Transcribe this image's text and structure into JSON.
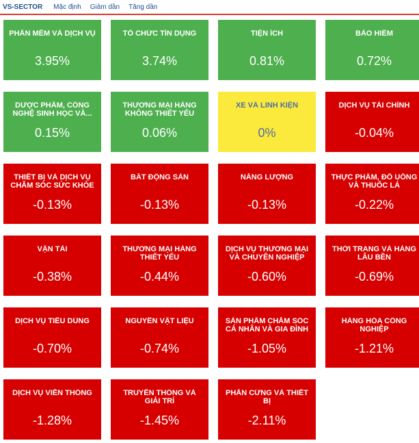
{
  "header": {
    "brand": "VS-SECTOR",
    "options": [
      "Mặc định",
      "Giảm dần",
      "Tăng dần"
    ]
  },
  "colors": {
    "up": "#4eaf4f",
    "down": "#d60000",
    "flat": "#fbe93c",
    "accent": "#d9352b"
  },
  "sectors": [
    {
      "name": "Phần mềm và dịch vụ",
      "change": "3.95%",
      "trend": "up"
    },
    {
      "name": "Tổ chức tín dụng",
      "change": "3.74%",
      "trend": "up"
    },
    {
      "name": "Tiện ích",
      "change": "0.81%",
      "trend": "up"
    },
    {
      "name": "Bảo hiểm",
      "change": "0.72%",
      "trend": "up"
    },
    {
      "name": "Dược phẩm, công nghệ sinh học và...",
      "change": "0.15%",
      "trend": "up"
    },
    {
      "name": "Thương mại hàng không thiết yếu",
      "change": "0.06%",
      "trend": "up"
    },
    {
      "name": "Xe và linh kiện",
      "change": "0%",
      "trend": "flat"
    },
    {
      "name": "Dịch vụ tài chính",
      "change": "-0.04%",
      "trend": "down"
    },
    {
      "name": "Thiết bị và dịch vụ chăm sóc sức khỏe",
      "change": "-0.13%",
      "trend": "down"
    },
    {
      "name": "Bất động sản",
      "change": "-0.13%",
      "trend": "down"
    },
    {
      "name": "Năng lượng",
      "change": "-0.13%",
      "trend": "down"
    },
    {
      "name": "Thực phẩm, đồ uống và thuốc lá",
      "change": "-0.22%",
      "trend": "down"
    },
    {
      "name": "Vận tải",
      "change": "-0.38%",
      "trend": "down"
    },
    {
      "name": "Thương mại hàng thiết yếu",
      "change": "-0.44%",
      "trend": "down"
    },
    {
      "name": "Dịch vụ thương mại và chuyên nghiệp",
      "change": "-0.60%",
      "trend": "down"
    },
    {
      "name": "Thời trang và hàng lâu bền",
      "change": "-0.69%",
      "trend": "down"
    },
    {
      "name": "Dịch vụ tiêu dùng",
      "change": "-0.70%",
      "trend": "down"
    },
    {
      "name": "Nguyên vật liệu",
      "change": "-0.74%",
      "trend": "down"
    },
    {
      "name": "Sản phẩm chăm sóc cá nhân và gia đình",
      "change": "-1.05%",
      "trend": "down"
    },
    {
      "name": "Hàng hóa công nghiệp",
      "change": "-1.21%",
      "trend": "down"
    },
    {
      "name": "Dịch vụ viễn thông",
      "change": "-1.28%",
      "trend": "down"
    },
    {
      "name": "Truyền thông và giải trí",
      "change": "-1.45%",
      "trend": "down"
    },
    {
      "name": "Phần cứng và thiết bị",
      "change": "-2.11%",
      "trend": "down"
    }
  ]
}
